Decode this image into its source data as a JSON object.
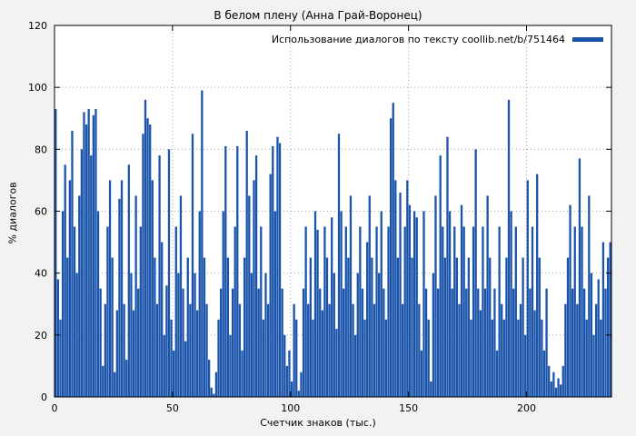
{
  "figure": {
    "title": "В белом плену (Анна Грай-Воронец)",
    "legend_label": "Использование диалогов по тексту coollib.net/b/751464"
  },
  "colors": {
    "bar": "#1a53aa",
    "background": "#f2f2f2",
    "plot_background": "#ffffff",
    "grid": "#a8a8a8",
    "axis": "#000000"
  },
  "chart_data": {
    "type": "bar",
    "title": "В белом плену (Анна Грай-Воронец)",
    "legend": "Использование диалогов по тексту coollib.net/b/751464",
    "xlabel": "Счетчик знаков (тыс.)",
    "ylabel": "% диалогов",
    "xlim": [
      0,
      236
    ],
    "ylim": [
      0,
      120
    ],
    "xticks": [
      0,
      50,
      100,
      150,
      200
    ],
    "yticks": [
      0,
      20,
      40,
      60,
      80,
      100,
      120
    ],
    "grid": true,
    "legend_position": "top-right",
    "x_start": 0,
    "x_step": 1,
    "values": [
      93,
      38,
      25,
      60,
      75,
      45,
      70,
      86,
      55,
      40,
      65,
      80,
      92,
      88,
      93,
      78,
      91,
      93,
      60,
      35,
      10,
      30,
      55,
      70,
      45,
      8,
      28,
      64,
      70,
      30,
      12,
      75,
      40,
      28,
      65,
      35,
      55,
      85,
      96,
      90,
      88,
      70,
      45,
      30,
      78,
      50,
      20,
      36,
      80,
      25,
      15,
      55,
      40,
      65,
      35,
      18,
      45,
      30,
      85,
      40,
      28,
      60,
      99,
      45,
      30,
      12,
      3,
      1,
      8,
      25,
      35,
      60,
      81,
      45,
      20,
      35,
      55,
      81,
      30,
      15,
      45,
      86,
      65,
      40,
      70,
      78,
      35,
      55,
      25,
      40,
      30,
      72,
      81,
      60,
      84,
      82,
      35,
      20,
      10,
      15,
      5,
      30,
      25,
      2,
      8,
      35,
      55,
      30,
      45,
      25,
      60,
      54,
      35,
      28,
      55,
      45,
      30,
      58,
      40,
      22,
      85,
      60,
      35,
      55,
      45,
      65,
      30,
      20,
      40,
      55,
      35,
      25,
      50,
      65,
      45,
      30,
      55,
      40,
      60,
      35,
      25,
      55,
      90,
      95,
      70,
      45,
      66,
      30,
      55,
      70,
      62,
      45,
      60,
      58,
      30,
      15,
      60,
      35,
      25,
      5,
      40,
      65,
      35,
      78,
      55,
      45,
      84,
      60,
      35,
      55,
      45,
      30,
      62,
      55,
      35,
      45,
      25,
      55,
      80,
      35,
      28,
      55,
      35,
      65,
      45,
      25,
      35,
      15,
      55,
      30,
      25,
      45,
      96,
      60,
      35,
      55,
      25,
      30,
      45,
      20,
      70,
      35,
      55,
      28,
      72,
      45,
      25,
      15,
      35,
      10,
      5,
      8,
      3,
      6,
      4,
      10,
      30,
      45,
      62,
      35,
      55,
      30,
      77,
      55,
      35,
      25,
      65,
      40,
      20,
      30,
      38,
      25,
      50,
      35,
      45,
      50
    ]
  }
}
